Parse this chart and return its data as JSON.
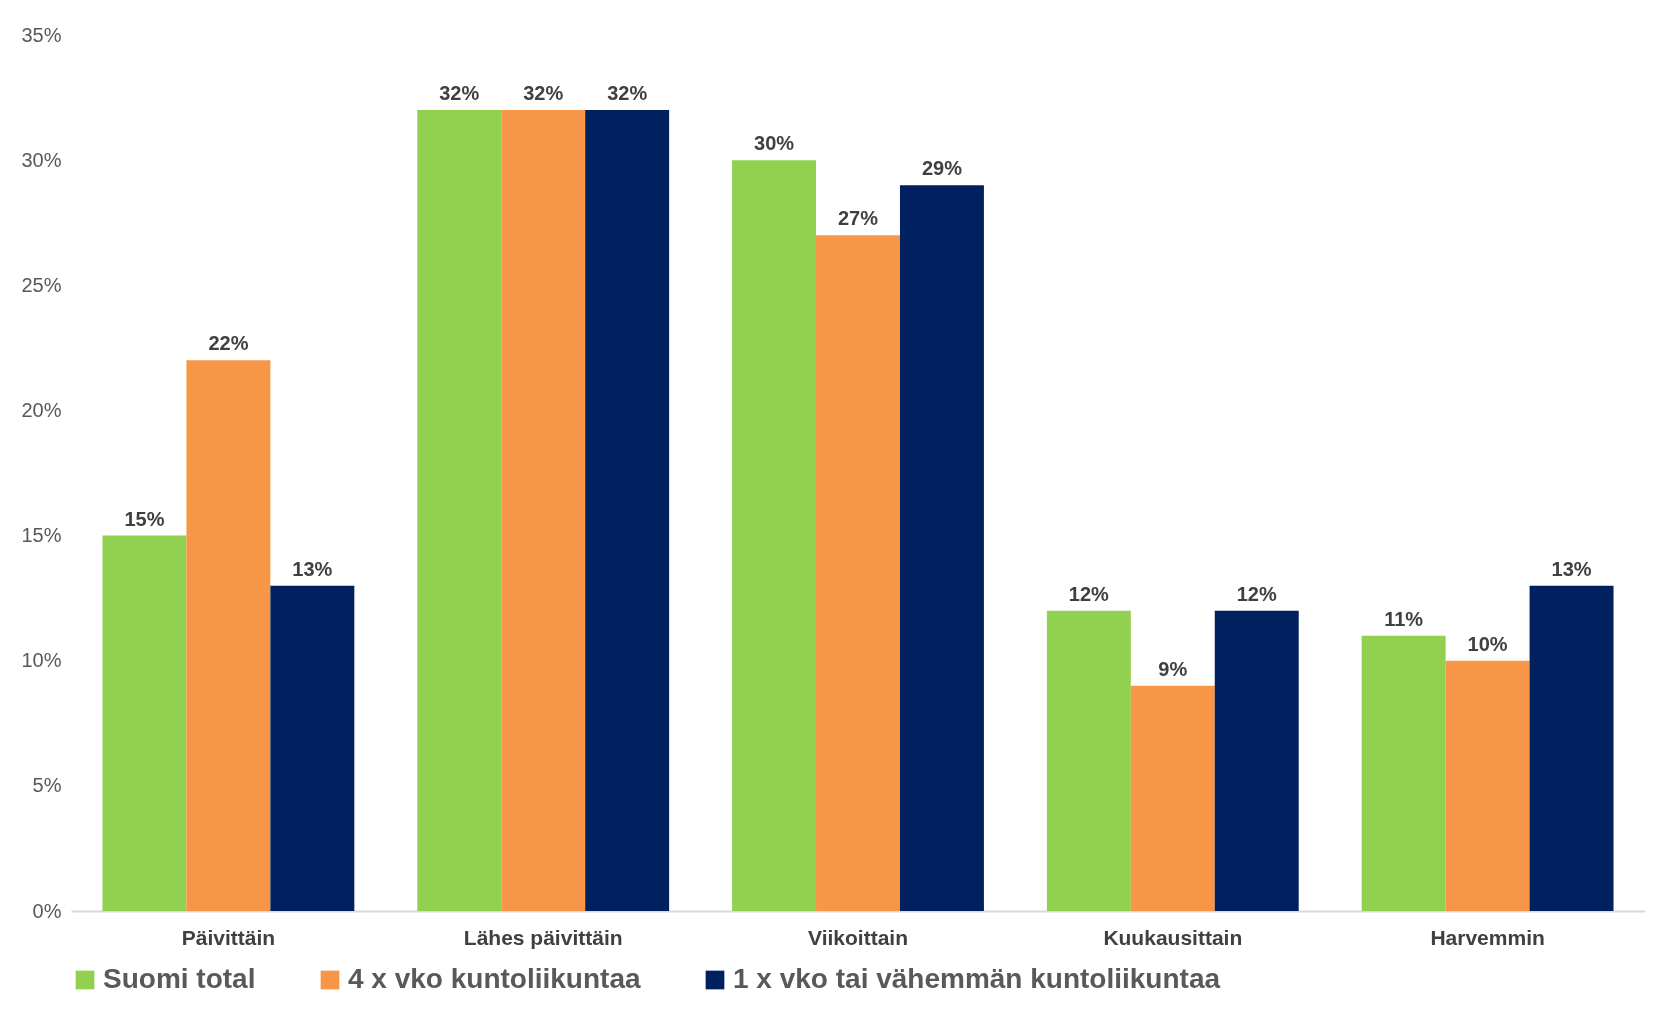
{
  "chart_data": {
    "type": "bar",
    "categories": [
      "Päivittäin",
      "Lähes päivittäin",
      "Viikoittain",
      "Kuukausittain",
      "Harvemmin"
    ],
    "series": [
      {
        "name": "Suomi total",
        "color": "#92d050",
        "values": [
          15,
          32,
          30,
          12,
          11
        ],
        "value_labels": [
          "15%",
          "32%",
          "30%",
          "12%",
          "11%"
        ]
      },
      {
        "name": "4 x vko kuntoliikuntaa",
        "color": "#f79646",
        "values": [
          22,
          32,
          27,
          9,
          10
        ],
        "value_labels": [
          "22%",
          "32%",
          "27%",
          "9%",
          "10%"
        ]
      },
      {
        "name": "1 x vko tai vähemmän kuntoliikuntaa",
        "color": "#002060",
        "values": [
          13,
          32,
          29,
          12,
          13
        ],
        "value_labels": [
          "13%",
          "32%",
          "29%",
          "12%",
          "13%"
        ]
      }
    ],
    "ylim": [
      0,
      35
    ],
    "yticks": [
      {
        "value": 0,
        "label": "0%"
      },
      {
        "value": 5,
        "label": "5%"
      },
      {
        "value": 10,
        "label": "10%"
      },
      {
        "value": 15,
        "label": "15%"
      },
      {
        "value": 20,
        "label": "20%"
      },
      {
        "value": 25,
        "label": "25%"
      },
      {
        "value": 30,
        "label": "30%"
      },
      {
        "value": 35,
        "label": "35%"
      }
    ],
    "grid": false,
    "legend": "bottom"
  }
}
